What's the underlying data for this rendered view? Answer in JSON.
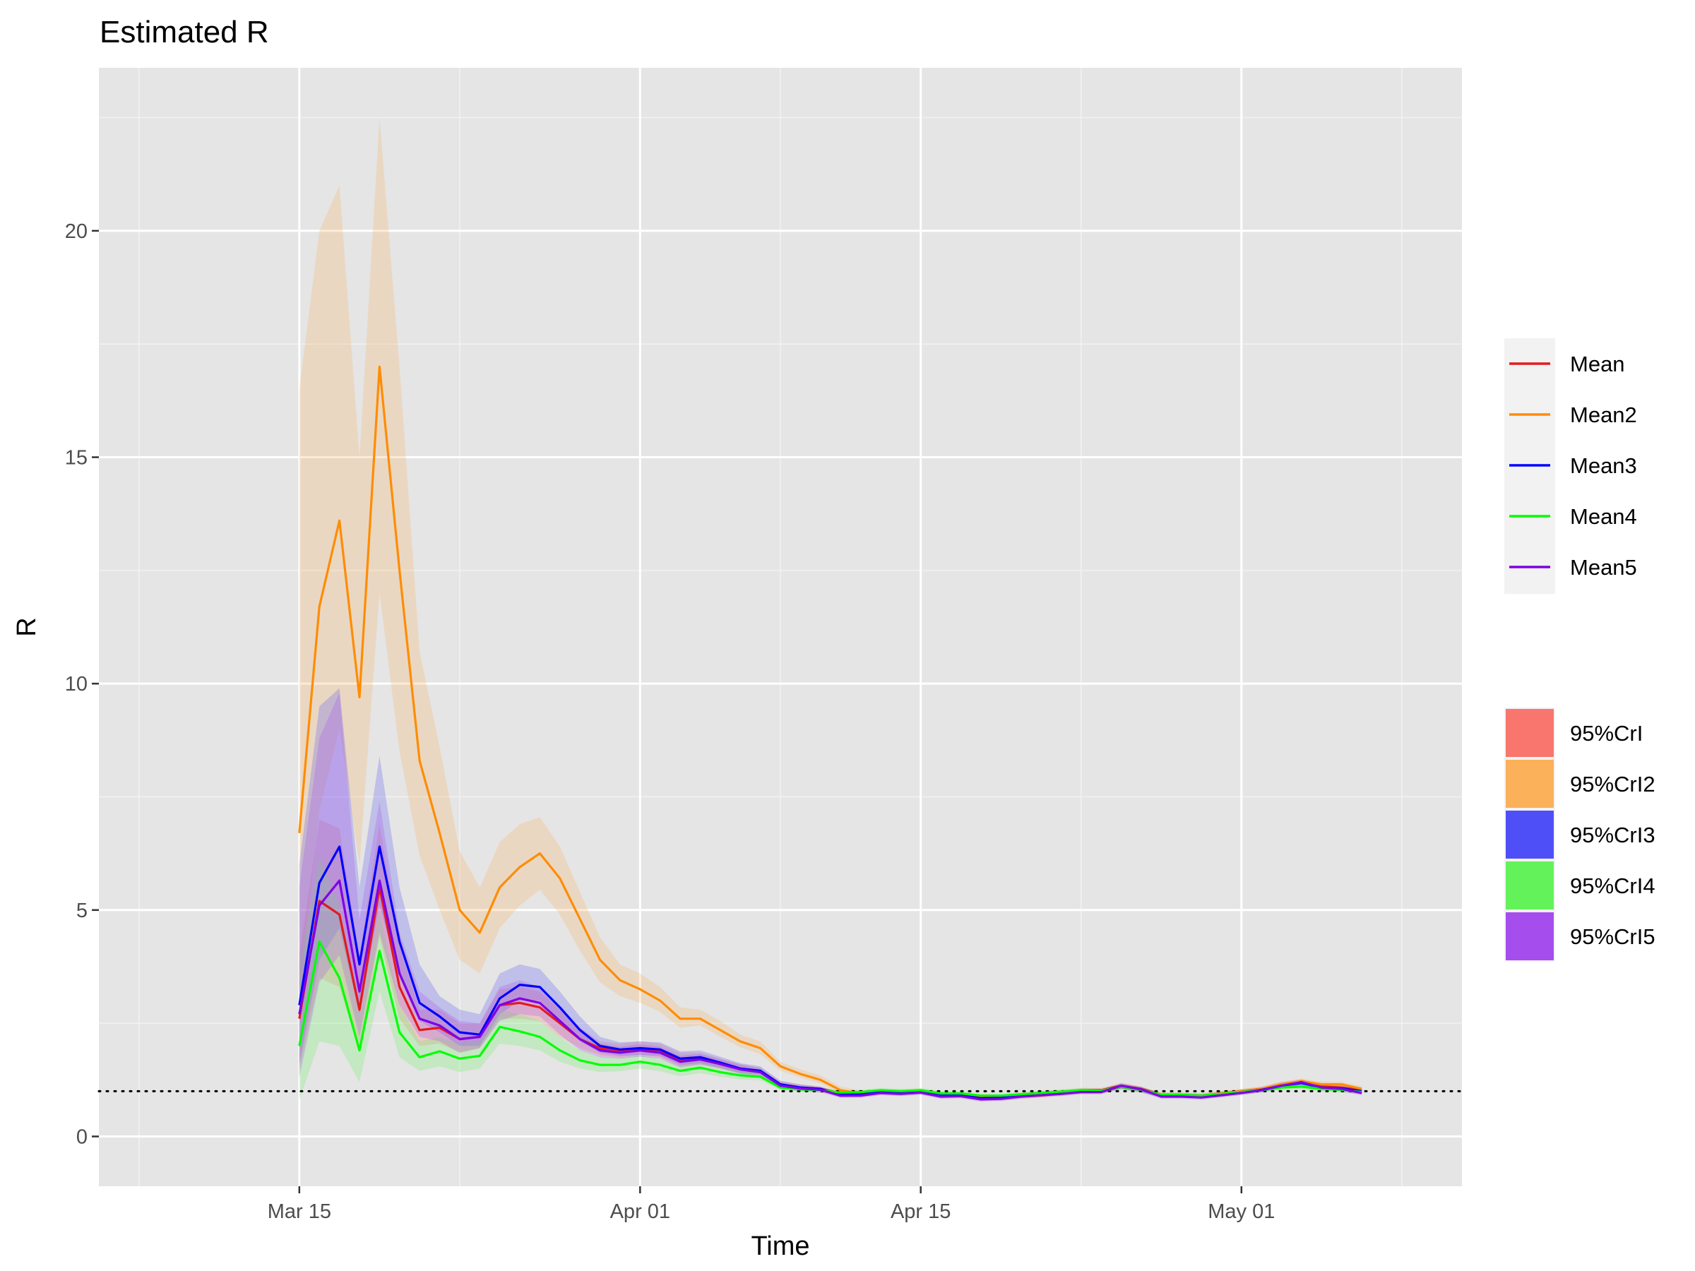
{
  "chart_data": {
    "type": "line",
    "title": "Estimated R",
    "xlabel": "Time",
    "ylabel": "R",
    "x_ticks": [
      {
        "value": "2020-03-15",
        "label": "Mar 15"
      },
      {
        "value": "2020-04-01",
        "label": "Apr 01"
      },
      {
        "value": "2020-04-15",
        "label": "Apr 15"
      },
      {
        "value": "2020-05-01",
        "label": "May 01"
      }
    ],
    "x_minor_ticks": [
      "2020-03-07",
      "2020-03-23",
      "2020-04-08",
      "2020-04-23",
      "2020-05-09"
    ],
    "y_ticks": [
      0,
      5,
      10,
      15,
      20
    ],
    "xlim": [
      "2020-03-05",
      "2020-05-12"
    ],
    "ylim": [
      -1.1,
      23.6
    ],
    "reference_line": {
      "y": 1,
      "style": "dotted"
    },
    "grid": true,
    "legend_position": "right",
    "x": [
      "2020-03-15",
      "2020-03-16",
      "2020-03-17",
      "2020-03-18",
      "2020-03-19",
      "2020-03-20",
      "2020-03-21",
      "2020-03-22",
      "2020-03-23",
      "2020-03-24",
      "2020-03-25",
      "2020-03-26",
      "2020-03-27",
      "2020-03-28",
      "2020-03-29",
      "2020-03-30",
      "2020-03-31",
      "2020-04-01",
      "2020-04-02",
      "2020-04-03",
      "2020-04-04",
      "2020-04-05",
      "2020-04-06",
      "2020-04-07",
      "2020-04-08",
      "2020-04-09",
      "2020-04-10",
      "2020-04-11",
      "2020-04-12",
      "2020-04-13",
      "2020-04-14",
      "2020-04-15",
      "2020-04-16",
      "2020-04-17",
      "2020-04-18",
      "2020-04-19",
      "2020-04-20",
      "2020-04-21",
      "2020-04-22",
      "2020-04-23",
      "2020-04-24",
      "2020-04-25",
      "2020-04-26",
      "2020-04-27",
      "2020-04-28",
      "2020-04-29",
      "2020-04-30",
      "2020-05-01",
      "2020-05-02",
      "2020-05-03",
      "2020-05-04",
      "2020-05-05",
      "2020-05-06",
      "2020-05-07"
    ],
    "series": [
      {
        "name": "Mean",
        "band_name": "95%CrI",
        "color": "#e41a1c",
        "band_color": "#f8766d",
        "values": [
          2.6,
          5.2,
          4.9,
          2.8,
          5.5,
          3.3,
          2.35,
          2.4,
          2.15,
          2.2,
          2.9,
          2.95,
          2.85,
          2.5,
          2.15,
          1.95,
          1.9,
          1.95,
          1.9,
          1.7,
          1.72,
          1.6,
          1.5,
          1.42,
          1.15,
          1.08,
          1.05,
          0.95,
          0.95,
          1.0,
          0.98,
          1.0,
          0.92,
          0.92,
          0.85,
          0.87,
          0.92,
          0.95,
          0.98,
          1.02,
          1.02,
          1.12,
          1.05,
          0.92,
          0.92,
          0.9,
          0.95,
          1.0,
          1.05,
          1.15,
          1.2,
          1.1,
          1.08,
          1.02
        ],
        "lower": [
          1.5,
          3.5,
          3.3,
          1.9,
          4.4,
          2.6,
          2.0,
          2.05,
          1.85,
          1.95,
          2.6,
          2.6,
          2.55,
          2.2,
          1.95,
          1.8,
          1.75,
          1.8,
          1.75,
          1.55,
          1.6,
          1.5,
          1.4,
          1.35,
          1.08,
          1.02,
          1.0,
          0.9,
          0.9,
          0.95,
          0.93,
          0.95,
          0.87,
          0.87,
          0.8,
          0.82,
          0.87,
          0.9,
          0.93,
          0.97,
          0.97,
          1.06,
          0.99,
          0.87,
          0.87,
          0.85,
          0.9,
          0.95,
          1.0,
          1.09,
          1.14,
          1.04,
          1.02,
          0.97
        ],
        "upper": [
          4.0,
          7.0,
          6.8,
          4.0,
          6.9,
          4.2,
          2.8,
          2.8,
          2.5,
          2.5,
          3.25,
          3.3,
          3.2,
          2.8,
          2.4,
          2.1,
          2.05,
          2.1,
          2.05,
          1.85,
          1.85,
          1.72,
          1.6,
          1.52,
          1.22,
          1.15,
          1.1,
          1.0,
          1.0,
          1.05,
          1.03,
          1.05,
          0.97,
          0.97,
          0.9,
          0.92,
          0.97,
          1.0,
          1.03,
          1.07,
          1.07,
          1.18,
          1.1,
          0.97,
          0.97,
          0.95,
          1.0,
          1.05,
          1.1,
          1.21,
          1.26,
          1.16,
          1.14,
          1.08
        ]
      },
      {
        "name": "Mean2",
        "band_name": "95%CrI2",
        "color": "#ff8c00",
        "band_color": "#fbb05a",
        "values": [
          6.7,
          11.7,
          13.6,
          9.7,
          17.0,
          12.5,
          8.3,
          6.7,
          5.0,
          4.5,
          5.5,
          5.95,
          6.25,
          5.7,
          4.8,
          3.9,
          3.45,
          3.25,
          3.0,
          2.6,
          2.6,
          2.35,
          2.1,
          1.95,
          1.55,
          1.38,
          1.25,
          1.02,
          0.95,
          0.99,
          0.97,
          1.0,
          0.93,
          0.93,
          0.83,
          0.85,
          0.88,
          0.9,
          0.95,
          0.98,
          0.99,
          1.1,
          1.03,
          0.92,
          0.91,
          0.9,
          0.95,
          1.0,
          1.05,
          1.15,
          1.22,
          1.15,
          1.15,
          1.05
        ],
        "lower": [
          3.0,
          7.2,
          9.0,
          6.0,
          12.0,
          8.5,
          6.2,
          5.0,
          3.9,
          3.6,
          4.6,
          5.1,
          5.45,
          4.9,
          4.1,
          3.4,
          3.1,
          2.95,
          2.75,
          2.4,
          2.45,
          2.2,
          1.97,
          1.82,
          1.45,
          1.3,
          1.17,
          0.95,
          0.89,
          0.93,
          0.91,
          0.94,
          0.87,
          0.87,
          0.78,
          0.8,
          0.83,
          0.85,
          0.9,
          0.93,
          0.94,
          1.04,
          0.97,
          0.87,
          0.86,
          0.85,
          0.9,
          0.95,
          1.0,
          1.09,
          1.16,
          1.09,
          1.09,
          0.99
        ],
        "upper": [
          16.5,
          20.0,
          21.0,
          15.0,
          22.5,
          17.0,
          10.7,
          8.6,
          6.3,
          5.5,
          6.5,
          6.9,
          7.05,
          6.4,
          5.4,
          4.4,
          3.8,
          3.6,
          3.3,
          2.85,
          2.8,
          2.55,
          2.25,
          2.1,
          1.65,
          1.48,
          1.35,
          1.1,
          1.02,
          1.05,
          1.03,
          1.06,
          0.99,
          0.99,
          0.88,
          0.9,
          0.93,
          0.95,
          1.0,
          1.03,
          1.04,
          1.16,
          1.09,
          0.97,
          0.96,
          0.95,
          1.0,
          1.05,
          1.1,
          1.21,
          1.28,
          1.21,
          1.21,
          1.11
        ]
      },
      {
        "name": "Mean3",
        "band_name": "95%CrI3",
        "color": "#0000ff",
        "band_color": "#4f4ff8",
        "values": [
          2.9,
          5.6,
          6.4,
          3.8,
          6.4,
          4.3,
          2.95,
          2.65,
          2.3,
          2.25,
          3.05,
          3.35,
          3.3,
          2.85,
          2.35,
          2.0,
          1.92,
          1.95,
          1.92,
          1.72,
          1.75,
          1.63,
          1.5,
          1.45,
          1.15,
          1.08,
          1.05,
          0.92,
          0.93,
          0.98,
          0.96,
          0.98,
          0.9,
          0.91,
          0.84,
          0.85,
          0.9,
          0.93,
          0.96,
          1.0,
          1.0,
          1.1,
          1.03,
          0.9,
          0.9,
          0.88,
          0.93,
          0.98,
          1.03,
          1.12,
          1.18,
          1.08,
          1.06,
          1.0
        ],
        "lower": [
          1.6,
          3.9,
          4.6,
          2.7,
          5.1,
          3.5,
          2.55,
          2.3,
          2.0,
          2.0,
          2.7,
          3.0,
          3.0,
          2.55,
          2.1,
          1.85,
          1.78,
          1.8,
          1.78,
          1.58,
          1.62,
          1.52,
          1.4,
          1.37,
          1.08,
          1.02,
          1.0,
          0.87,
          0.88,
          0.93,
          0.91,
          0.93,
          0.85,
          0.86,
          0.79,
          0.8,
          0.85,
          0.88,
          0.91,
          0.95,
          0.95,
          1.04,
          0.97,
          0.85,
          0.85,
          0.83,
          0.88,
          0.93,
          0.98,
          1.06,
          1.12,
          1.02,
          1.0,
          0.95
        ],
        "upper": [
          6.0,
          9.5,
          9.9,
          5.5,
          8.4,
          5.5,
          3.8,
          3.1,
          2.8,
          2.7,
          3.6,
          3.8,
          3.7,
          3.2,
          2.65,
          2.2,
          2.08,
          2.1,
          2.08,
          1.88,
          1.9,
          1.76,
          1.62,
          1.55,
          1.23,
          1.15,
          1.1,
          0.97,
          0.98,
          1.03,
          1.01,
          1.03,
          0.95,
          0.96,
          0.89,
          0.9,
          0.95,
          0.98,
          1.01,
          1.05,
          1.05,
          1.16,
          1.09,
          0.95,
          0.95,
          0.93,
          0.98,
          1.03,
          1.08,
          1.18,
          1.24,
          1.14,
          1.12,
          1.05
        ]
      },
      {
        "name": "Mean4",
        "band_name": "95%CrI4",
        "color": "#00ff00",
        "band_color": "#63f25a",
        "values": [
          2.0,
          4.3,
          3.5,
          1.9,
          4.1,
          2.3,
          1.75,
          1.88,
          1.72,
          1.78,
          2.42,
          2.32,
          2.2,
          1.9,
          1.68,
          1.58,
          1.58,
          1.65,
          1.58,
          1.45,
          1.52,
          1.42,
          1.35,
          1.32,
          1.08,
          1.04,
          1.02,
          0.97,
          0.98,
          1.02,
          1.0,
          1.02,
          0.95,
          0.95,
          0.9,
          0.9,
          0.93,
          0.96,
          0.99,
          1.02,
          1.01,
          1.1,
          1.03,
          0.92,
          0.92,
          0.9,
          0.94,
          0.98,
          1.02,
          1.08,
          1.1,
          1.05,
          1.03,
          0.98
        ],
        "lower": [
          0.8,
          2.1,
          2.0,
          1.2,
          3.2,
          1.75,
          1.45,
          1.55,
          1.42,
          1.5,
          2.05,
          2.0,
          1.9,
          1.65,
          1.5,
          1.42,
          1.44,
          1.5,
          1.44,
          1.33,
          1.4,
          1.32,
          1.26,
          1.24,
          1.02,
          0.99,
          0.97,
          0.92,
          0.93,
          0.97,
          0.95,
          0.97,
          0.9,
          0.9,
          0.85,
          0.85,
          0.88,
          0.91,
          0.94,
          0.97,
          0.96,
          1.04,
          0.97,
          0.87,
          0.87,
          0.85,
          0.89,
          0.93,
          0.97,
          1.02,
          1.04,
          0.99,
          0.97,
          0.93
        ],
        "upper": [
          3.8,
          6.2,
          5.1,
          2.8,
          5.0,
          2.9,
          2.1,
          2.2,
          2.05,
          2.1,
          2.8,
          2.7,
          2.55,
          2.2,
          1.9,
          1.76,
          1.74,
          1.8,
          1.72,
          1.58,
          1.65,
          1.53,
          1.45,
          1.42,
          1.14,
          1.1,
          1.07,
          1.02,
          1.03,
          1.07,
          1.05,
          1.07,
          1.0,
          1.0,
          0.95,
          0.95,
          0.98,
          1.01,
          1.04,
          1.07,
          1.06,
          1.16,
          1.09,
          0.97,
          0.97,
          0.95,
          0.99,
          1.03,
          1.07,
          1.14,
          1.16,
          1.11,
          1.09,
          1.03
        ]
      },
      {
        "name": "Mean5",
        "band_name": "95%CrI5",
        "color": "#8000e6",
        "band_color": "#a64ded",
        "values": [
          2.7,
          5.1,
          5.65,
          3.2,
          5.65,
          3.6,
          2.6,
          2.45,
          2.15,
          2.2,
          2.9,
          3.05,
          2.95,
          2.55,
          2.15,
          1.9,
          1.85,
          1.9,
          1.85,
          1.65,
          1.7,
          1.6,
          1.48,
          1.42,
          1.12,
          1.06,
          1.03,
          0.9,
          0.9,
          0.96,
          0.94,
          0.97,
          0.88,
          0.89,
          0.82,
          0.83,
          0.88,
          0.91,
          0.94,
          0.98,
          0.98,
          1.12,
          1.04,
          0.88,
          0.88,
          0.86,
          0.91,
          0.96,
          1.02,
          1.12,
          1.2,
          1.08,
          1.05,
          0.96
        ],
        "lower": [
          1.3,
          3.4,
          4.0,
          2.2,
          4.5,
          2.9,
          2.2,
          2.1,
          1.85,
          1.95,
          2.55,
          2.7,
          2.65,
          2.25,
          1.9,
          1.75,
          1.72,
          1.76,
          1.72,
          1.52,
          1.58,
          1.5,
          1.38,
          1.34,
          1.05,
          1.0,
          0.97,
          0.85,
          0.85,
          0.91,
          0.89,
          0.92,
          0.83,
          0.84,
          0.77,
          0.78,
          0.83,
          0.86,
          0.89,
          0.93,
          0.93,
          1.06,
          0.98,
          0.83,
          0.83,
          0.81,
          0.86,
          0.91,
          0.97,
          1.06,
          1.14,
          1.02,
          0.99,
          0.91
        ],
        "upper": [
          5.5,
          8.8,
          9.8,
          4.8,
          7.4,
          4.5,
          3.2,
          2.85,
          2.55,
          2.5,
          3.3,
          3.45,
          3.3,
          2.85,
          2.4,
          2.05,
          1.98,
          2.04,
          1.98,
          1.78,
          1.82,
          1.7,
          1.58,
          1.5,
          1.19,
          1.12,
          1.09,
          0.95,
          0.95,
          1.01,
          0.99,
          1.02,
          0.93,
          0.94,
          0.87,
          0.88,
          0.93,
          0.96,
          0.99,
          1.03,
          1.03,
          1.18,
          1.1,
          0.93,
          0.93,
          0.91,
          0.96,
          1.01,
          1.07,
          1.18,
          1.26,
          1.14,
          1.11,
          1.01
        ]
      }
    ]
  }
}
